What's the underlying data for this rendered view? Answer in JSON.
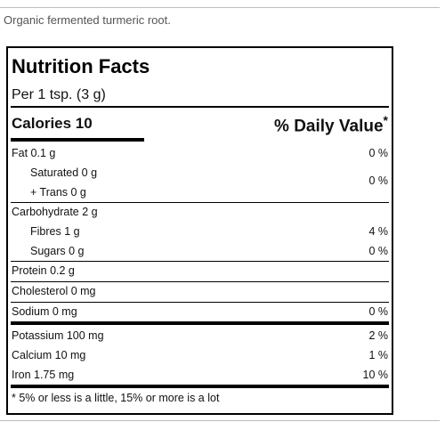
{
  "caption": "Organic fermented turmeric root.",
  "label": {
    "title": "Nutrition Facts",
    "serving": "Per 1 tsp. (3 g)",
    "calories_label": "Calories 10",
    "dv_header": "% Daily Value",
    "dv_asterisk": "*",
    "rows": {
      "fat": {
        "name": "Fat 0.1 g",
        "pct": "0 %"
      },
      "saturated": {
        "name": "Saturated 0 g"
      },
      "trans": {
        "name": "+ Trans 0 g"
      },
      "sat_trans_pct": "0 %",
      "carbohydrate": {
        "name": "Carbohydrate 2 g"
      },
      "fibres": {
        "name": "Fibres 1 g",
        "pct": "4 %"
      },
      "sugars": {
        "name": "Sugars 0 g",
        "pct": "0 %"
      },
      "protein": {
        "name": "Protein 0.2 g"
      },
      "cholesterol": {
        "name": "Cholesterol 0 mg"
      },
      "sodium": {
        "name": "Sodium 0 mg",
        "pct": "0 %"
      },
      "potassium": {
        "name": "Potassium 100 mg",
        "pct": "2 %"
      },
      "calcium": {
        "name": "Calcium 10 mg",
        "pct": "1 %"
      },
      "iron": {
        "name": "Iron 1.75 mg",
        "pct": "10 %"
      }
    },
    "footnote": "* 5% or less is a little, 15% or more is a lot"
  }
}
